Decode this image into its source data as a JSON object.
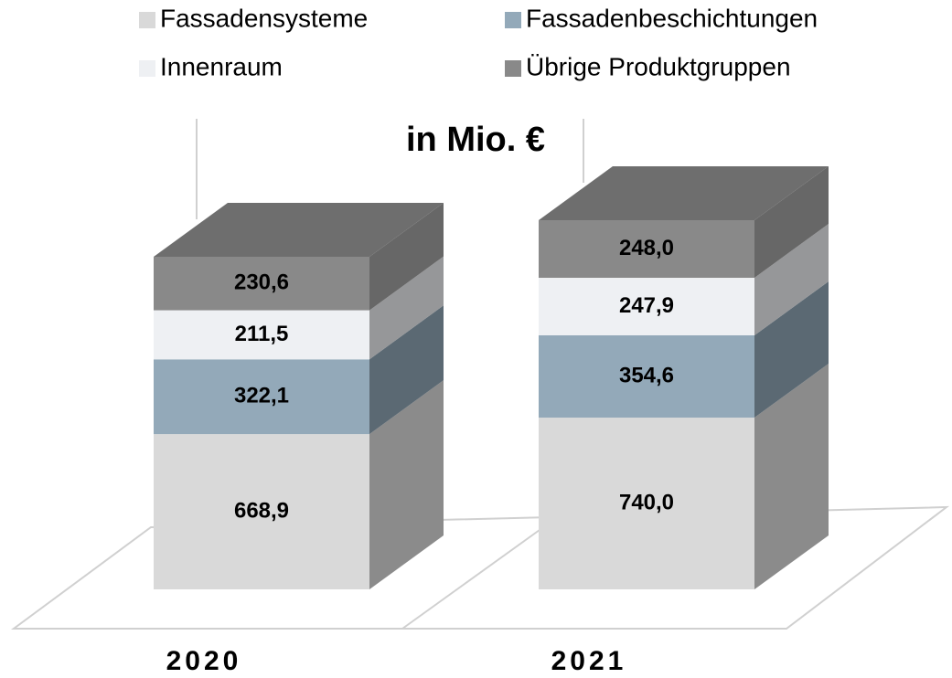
{
  "chart_data": {
    "type": "bar3d_stacked",
    "title": "in Mio. €",
    "categories": [
      "2020",
      "2021"
    ],
    "series": [
      {
        "name": "Fassadensysteme",
        "color": "#d9d9d9",
        "values": [
          668.9,
          740.0
        ],
        "value_labels": [
          "668,9",
          "740,0"
        ]
      },
      {
        "name": "Fassadenbeschichtungen",
        "color": "#93a9b9",
        "values": [
          322.1,
          354.6
        ],
        "value_labels": [
          "322,1",
          "354,6"
        ]
      },
      {
        "name": "Innenraum",
        "color": "#eef0f3",
        "values": [
          211.5,
          247.9
        ],
        "value_labels": [
          "211,5",
          "247,9"
        ]
      },
      {
        "name": "Übrige Produktgruppen",
        "color": "#898989",
        "values": [
          230.6,
          248.0
        ],
        "value_labels": [
          "230,6",
          "248,0"
        ]
      }
    ]
  }
}
